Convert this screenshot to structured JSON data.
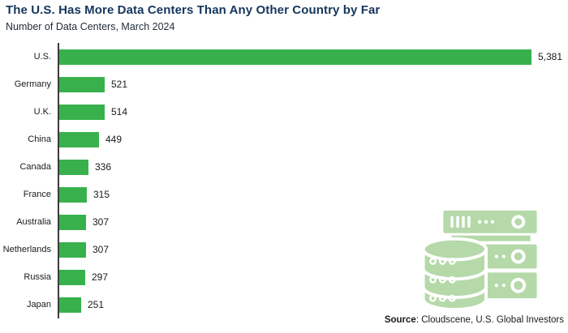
{
  "header": {
    "title": "The U.S. Has More Data Centers Than Any Other Country by Far",
    "subtitle": "Number of Data Centers, March 2024"
  },
  "source": {
    "label": "Source",
    "text": ": Cloudscene, U.S. Global Investors"
  },
  "colors": {
    "background": "#ffffff",
    "bar": "#38b14d",
    "title": "#16365c",
    "subtitle": "#1e2b38",
    "text": "#1a1a1a",
    "axis": "#3c3c3c",
    "icon": "#b5d9a9"
  },
  "icon": {
    "name": "data-center-icon"
  },
  "chart_data": {
    "type": "bar",
    "orientation": "horizontal",
    "title": "The U.S. Has More Data Centers Than Any Other Country by Far",
    "subtitle": "Number of Data Centers, March 2024",
    "categories": [
      "U.S.",
      "Germany",
      "U.K.",
      "China",
      "Canada",
      "France",
      "Australia",
      "Netherlands",
      "Russia",
      "Japan"
    ],
    "values": [
      5381,
      521,
      514,
      449,
      336,
      315,
      307,
      307,
      297,
      251
    ],
    "value_labels": [
      "5,381",
      "521",
      "514",
      "449",
      "336",
      "315",
      "307",
      "307",
      "297",
      "251"
    ],
    "xlim": [
      0,
      5381
    ],
    "grid": false,
    "legend": false,
    "bar_color": "#38b14d",
    "source": "Cloudscene, U.S. Global Investors"
  }
}
